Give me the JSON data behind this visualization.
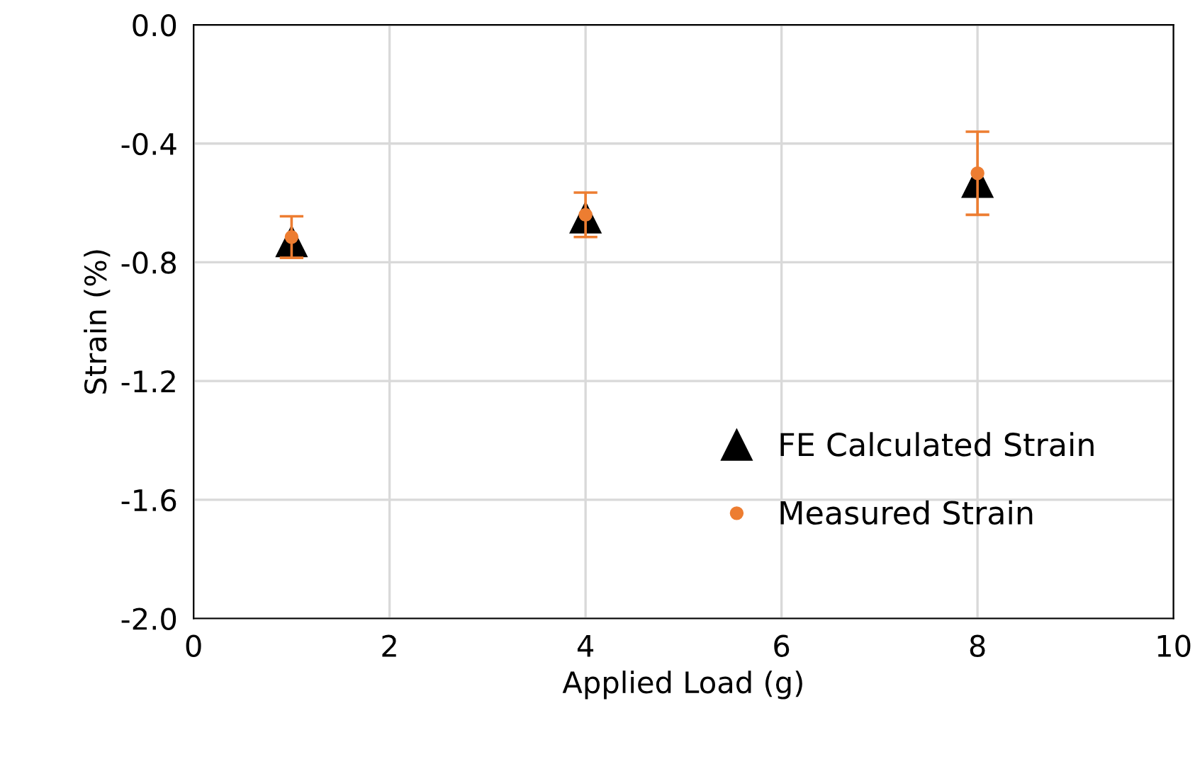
{
  "chart_data": {
    "type": "scatter",
    "xlabel": "Applied Load (g)",
    "ylabel": "Strain (%)",
    "xlim": [
      0,
      10
    ],
    "xticks": [
      0,
      2,
      4,
      6,
      8,
      10
    ],
    "ylim": [
      -2.0,
      0.0
    ],
    "yticks": [
      {
        "value": -2.0,
        "label": "-2.0"
      },
      {
        "value": -1.6,
        "label": "-1.6"
      },
      {
        "value": -1.2,
        "label": "-1.2"
      },
      {
        "value": -0.8,
        "label": "-0.8"
      },
      {
        "value": -0.4,
        "label": "-0.4"
      },
      {
        "value": 0.0,
        "label": "0.0"
      }
    ],
    "grid": true,
    "legend": "bottom right",
    "series": [
      {
        "name": "FE Calculated Strain",
        "color": "#000000",
        "marker": "triangle",
        "x": [
          1,
          4,
          8
        ],
        "values": [
          -0.73,
          -0.65,
          -0.53
        ]
      },
      {
        "name": "Measured Strain",
        "color": "#ed7d31",
        "marker": "circle",
        "x": [
          1,
          4,
          8
        ],
        "values": [
          -0.715,
          -0.64,
          -0.5
        ],
        "errors": [
          0.07,
          0.075,
          0.14
        ]
      }
    ]
  }
}
